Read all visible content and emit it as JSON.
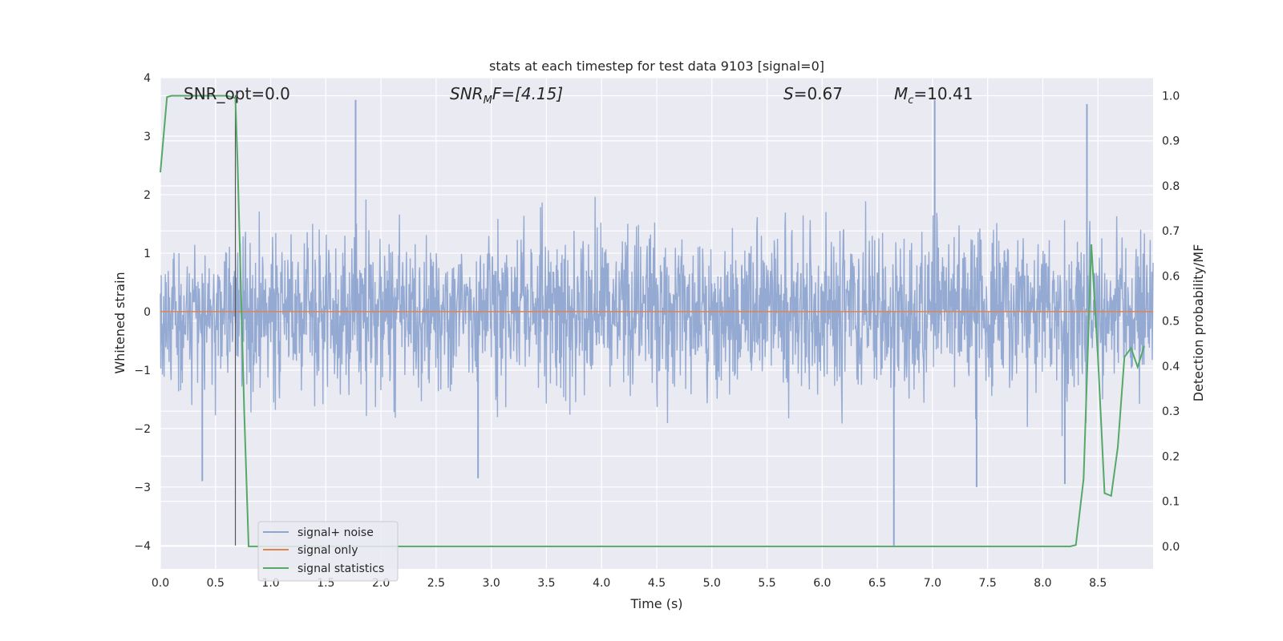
{
  "chart_data": {
    "type": "line",
    "title": "stats at each timestep for test data 9103 [signal=0]",
    "xlabel": "Time (s)",
    "ylabel_left": "Whitened strain",
    "ylabel_right": "Detection probability/MF",
    "xlim": [
      0.0,
      9.0
    ],
    "ylim_left": [
      -4.4,
      4.0
    ],
    "ylim_right": [
      -0.05,
      1.04
    ],
    "x_ticks": [
      0.0,
      0.5,
      1.0,
      1.5,
      2.0,
      2.5,
      3.0,
      3.5,
      4.0,
      4.5,
      5.0,
      5.5,
      6.0,
      6.5,
      7.0,
      7.5,
      8.0,
      8.5
    ],
    "x_tick_labels": [
      "0.0",
      "0.5",
      "1.0",
      "1.5",
      "2.0",
      "2.5",
      "3.0",
      "3.5",
      "4.0",
      "4.5",
      "5.0",
      "5.5",
      "6.0",
      "6.5",
      "7.0",
      "7.5",
      "8.0",
      "8.5"
    ],
    "y_left_ticks": [
      4,
      3,
      2,
      1,
      0,
      -1,
      -2,
      -3,
      -4
    ],
    "y_left_tick_labels": [
      "4",
      "3",
      "2",
      "1",
      "0",
      "−1",
      "−2",
      "−3",
      "−4"
    ],
    "y_right_ticks": [
      1.0,
      0.9,
      0.8,
      0.7,
      0.6,
      0.5,
      0.4,
      0.3,
      0.2,
      0.1,
      0.0
    ],
    "y_right_tick_labels": [
      "1.0",
      "0.9",
      "0.8",
      "0.7",
      "0.6",
      "0.5",
      "0.4",
      "0.3",
      "0.2",
      "0.1",
      "0.0"
    ],
    "grid": true,
    "legend_position": "lower-left",
    "annotations": {
      "snr_opt": "SNR_opt=0.0",
      "snr_mf_pre": "SNR",
      "snr_mf_sub": "M",
      "snr_mf_post": "F=[4.15]",
      "s_symbol": "S",
      "s_value": "=0.67",
      "mc_symbol": "M",
      "mc_sub": "c",
      "mc_value": "=10.41"
    },
    "vertical_marker_x": 0.68,
    "series": [
      {
        "name": "signal+ noise",
        "axis": "left",
        "color": "#8fa6d0",
        "description_stats": {
          "x_start": 0.0,
          "x_end": 9.0,
          "typical_amplitude": 1.4,
          "max": 3.62,
          "min": -4.0
        }
      },
      {
        "name": "signal only",
        "axis": "left",
        "color": "#dd8452",
        "x": [
          0.0,
          9.0
        ],
        "y": [
          0.0,
          0.0
        ]
      },
      {
        "name": "signal statistics",
        "axis": "right",
        "color": "#55a868",
        "x": [
          0.0,
          0.06,
          0.1,
          0.15,
          0.2,
          0.3,
          0.4,
          0.5,
          0.6,
          0.68,
          0.7,
          0.76,
          0.8,
          0.85,
          0.9,
          1.0,
          2.0,
          3.0,
          4.0,
          5.0,
          6.0,
          7.0,
          8.0,
          8.25,
          8.3,
          8.37,
          8.44,
          8.5,
          8.56,
          8.62,
          8.68,
          8.74,
          8.8,
          8.86,
          8.92
        ],
        "y": [
          0.83,
          0.997,
          1.0,
          1.0,
          1.0,
          1.0,
          1.0,
          1.0,
          1.0,
          0.995,
          0.85,
          0.3,
          0.0,
          0.0,
          0.0,
          0.0,
          0.0,
          0.0,
          0.0,
          0.0,
          0.0,
          0.0,
          0.0,
          0.0,
          0.003,
          0.15,
          0.67,
          0.42,
          0.118,
          0.112,
          0.22,
          0.42,
          0.44,
          0.398,
          0.445
        ]
      }
    ]
  }
}
